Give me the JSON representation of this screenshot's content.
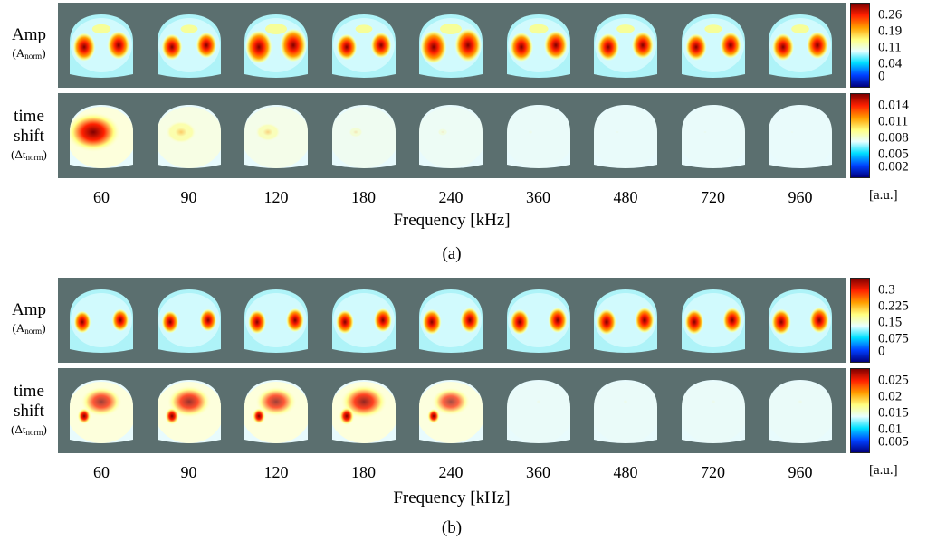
{
  "panels": [
    {
      "id": "a",
      "caption": "(a)",
      "amp_label_main": "Amp",
      "amp_label_sub": "(A",
      "amp_label_sub_idx": "norm",
      "amp_label_sub_close": ")",
      "ts_label_1": "time",
      "ts_label_2": "shift",
      "ts_label_sub": "(Δt",
      "ts_label_sub_idx": "norm",
      "ts_label_sub_close": ")",
      "amp_ticks": [
        "0.26",
        "0.19",
        "0.11",
        "0.04",
        "0"
      ],
      "ts_ticks": [
        "0.014",
        "0.011",
        "0.008",
        "0.005",
        "0.002"
      ],
      "unit": "[a.u.]",
      "amp_levels": [
        0.85,
        0.78,
        1.0,
        0.78,
        1.0,
        0.88,
        0.82,
        0.8,
        0.82
      ],
      "ts_levels": [
        1.0,
        0.55,
        0.45,
        0.25,
        0.18,
        0.08,
        0.06,
        0.06,
        0.05
      ]
    },
    {
      "id": "b",
      "caption": "(b)",
      "amp_label_main": "Amp",
      "amp_label_sub": "(A",
      "amp_label_sub_idx": "norm",
      "amp_label_sub_close": ")",
      "ts_label_1": "time",
      "ts_label_2": "shift",
      "ts_label_sub": "(Δt",
      "ts_label_sub_idx": "norm",
      "ts_label_sub_close": ")",
      "amp_ticks": [
        "0.3",
        "0.225",
        "0.15",
        "0.075",
        "0"
      ],
      "ts_ticks": [
        "0.025",
        "0.02",
        "0.015",
        "0.01",
        "0.005"
      ],
      "unit": "[a.u.]",
      "amp_levels": [
        0.8,
        0.8,
        0.85,
        0.85,
        0.9,
        0.9,
        0.92,
        0.9,
        0.92
      ],
      "ts_levels": [
        0.75,
        0.8,
        0.75,
        0.85,
        0.7,
        0.08,
        0.08,
        0.08,
        0.08
      ]
    }
  ],
  "frequencies": [
    "60",
    "90",
    "120",
    "180",
    "240",
    "360",
    "480",
    "720",
    "960"
  ],
  "xlabel": "Frequency [kHz]",
  "colors": {
    "background": "#5b6f6f",
    "colormap": [
      "#00007f",
      "#0040ff",
      "#00e0ff",
      "#e8ffff",
      "#ffff80",
      "#ffa000",
      "#ff2000",
      "#7f0000"
    ]
  }
}
